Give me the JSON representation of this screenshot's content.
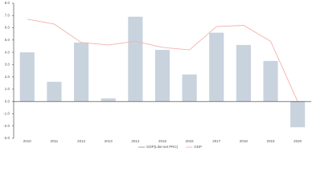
{
  "chart_data": {
    "type": "bar",
    "categories": [
      "2010",
      "2011",
      "2012",
      "2013",
      "2014",
      "2015",
      "2016",
      "2017",
      "2018",
      "2019",
      "2020"
    ],
    "series": [
      {
        "name": "GDP(Like-set PRC)",
        "type": "bar",
        "color": "#c9d3de",
        "values": [
          4.0,
          1.6,
          4.8,
          0.25,
          6.9,
          4.2,
          2.2,
          5.6,
          4.6,
          3.3,
          -2.1
        ]
      },
      {
        "name": "GDP",
        "type": "line",
        "color": "#f2b3ad",
        "values": [
          6.7,
          6.3,
          4.8,
          4.6,
          4.9,
          4.4,
          4.2,
          6.1,
          6.2,
          4.9,
          0
        ]
      }
    ],
    "ylim": [
      -3,
      8
    ],
    "yticks": [
      {
        "value": -3,
        "label": "-3.0"
      },
      {
        "value": -2,
        "label": "-2.0"
      },
      {
        "value": -1,
        "label": "-1.0"
      },
      {
        "value": 0,
        "label": "0.0"
      },
      {
        "value": 1,
        "label": "1.0"
      },
      {
        "value": 2,
        "label": "2.0"
      },
      {
        "value": 3,
        "label": "3.0"
      },
      {
        "value": 4,
        "label": "4.0"
      },
      {
        "value": 5,
        "label": "5.0"
      },
      {
        "value": 6,
        "label": "6.0"
      },
      {
        "value": 7,
        "label": "7.0"
      },
      {
        "value": 8,
        "label": "8.0"
      }
    ],
    "grid": false,
    "legend": "bottom"
  }
}
